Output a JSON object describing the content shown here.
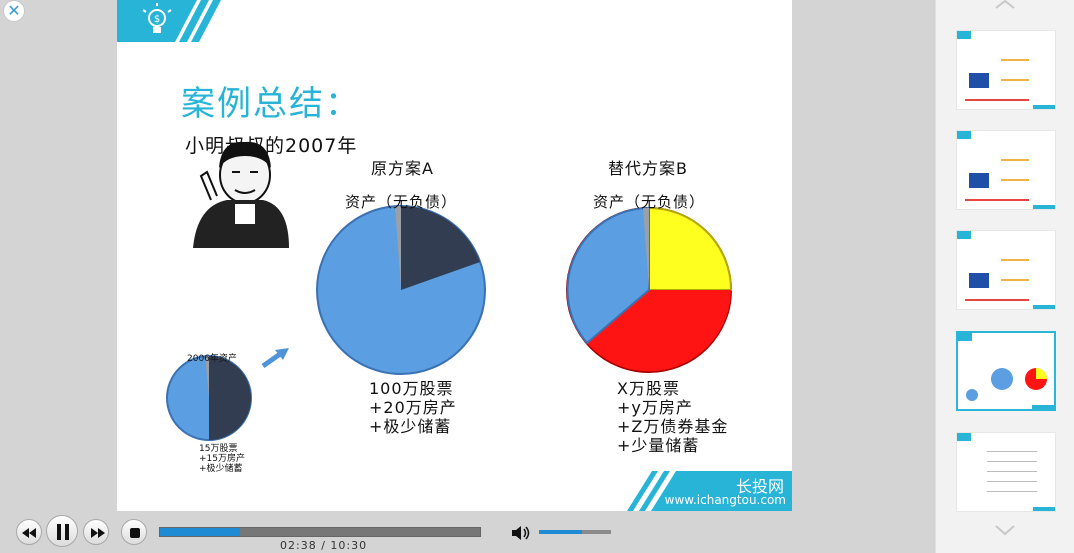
{
  "player": {
    "close_label": "✕",
    "time_current": "02:38",
    "time_separator": "/",
    "time_total": "10:30",
    "progress": 0.25,
    "volume": 0.6
  },
  "slide": {
    "title": "案例总结：",
    "subtitle": "小明叔叔的2007年",
    "plan_a": {
      "title": "原方案A",
      "subtitle": "资产（无负债）",
      "notes": [
        "100万股票",
        "+20万房产",
        "+极少储蓄"
      ]
    },
    "plan_b": {
      "title": "替代方案B",
      "subtitle": "资产（无负债）",
      "notes": [
        "X万股票",
        "+y万房产",
        "+Z万债券基金",
        "+少量储蓄"
      ]
    },
    "small": {
      "title": "2006年资产",
      "notes": [
        "15万股票",
        "+15万房产",
        "+极少储蓄"
      ]
    },
    "brand_cn": "长投网",
    "brand_url": "www.ichangtou.com"
  },
  "colors": {
    "accent": "#27b4d6",
    "pie_blue": "#5b9ee1",
    "pie_navy": "#323d52",
    "pie_red": "#ff1414",
    "pie_yellow": "#ffff1f",
    "progress": "#1e8bd4"
  },
  "icons": {
    "close": "close-icon",
    "rewind": "rewind-icon",
    "pause": "pause-icon",
    "forward": "fast-forward-icon",
    "stop": "stop-icon",
    "volume": "volume-icon",
    "logo": "lightbulb-dollar-icon"
  }
}
